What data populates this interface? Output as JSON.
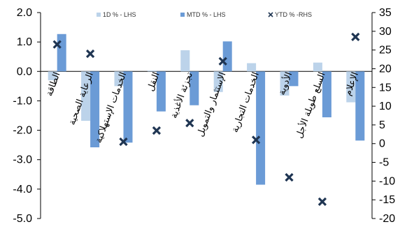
{
  "chart_data": {
    "type": "bar",
    "categories": [
      "الطاقة",
      "الرعاية الصحية",
      "الخدمات الإستهلاكية",
      "النقل",
      "تجزئة الأغذية",
      "الإستثمار والتمويل",
      "الخدمات التجارية",
      "الأدوية",
      "السلع طويلة الأجل",
      "الإعلام"
    ],
    "series": [
      {
        "name": "1D % - LHS",
        "axis": "left",
        "kind": "bar",
        "color": "#bcd3ea",
        "values": [
          -0.3,
          -1.68,
          -0.5,
          0.03,
          0.72,
          -0.7,
          0.28,
          -0.82,
          0.3,
          -1.05
        ]
      },
      {
        "name": "MTD % - LHS",
        "axis": "left",
        "kind": "bar",
        "color": "#6b9bd6",
        "values": [
          1.27,
          -2.58,
          -2.42,
          -1.36,
          -1.15,
          1.02,
          -3.85,
          -0.5,
          -1.56,
          -2.35
        ]
      },
      {
        "name": "YTD % -RHS",
        "axis": "right",
        "kind": "marker",
        "color": "#1f3552",
        "values": [
          26.5,
          24.0,
          0.5,
          3.5,
          5.5,
          22.0,
          1.0,
          -9.0,
          -15.5,
          28.5
        ]
      }
    ],
    "y_left": {
      "min": -5.0,
      "max": 2.0,
      "step": 1.0,
      "decimals": 1
    },
    "y_right": {
      "min": -20,
      "max": 35,
      "step": 5,
      "decimals": 0
    },
    "legend_position": "top",
    "grid": false
  }
}
